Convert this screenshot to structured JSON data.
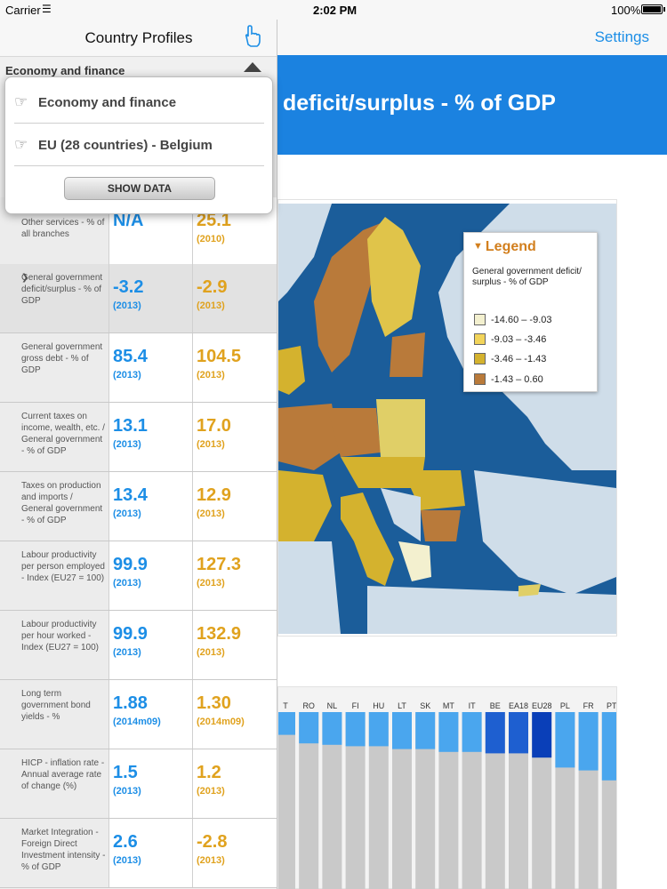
{
  "status_bar": {
    "carrier": "Carrier",
    "time": "2:02 PM",
    "battery": "100%"
  },
  "left_panel": {
    "title": "Country Profiles",
    "section_label": "Economy and finance",
    "dropdown": {
      "items": [
        {
          "label": "Economy and finance",
          "icon": "pointing-hand-icon"
        },
        {
          "label": "EU (28 countries) - Belgium",
          "icon": "pointing-hand-icon"
        }
      ],
      "button_label": "SHOW DATA"
    },
    "rows": [
      {
        "label": "Gross value added - Other services - % of all branches",
        "v1": "N/A",
        "v1_year": "",
        "v2": "25.1",
        "v2_year": "(2010)"
      },
      {
        "label": "General government deficit/surplus - % of GDP",
        "v1": "-3.2",
        "v1_year": "(2013)",
        "v2": "-2.9",
        "v2_year": "(2013)",
        "selected": true
      },
      {
        "label": "General government gross debt - % of GDP",
        "v1": "85.4",
        "v1_year": "(2013)",
        "v2": "104.5",
        "v2_year": "(2013)"
      },
      {
        "label": "Current taxes on income, wealth, etc. / General government - % of GDP",
        "v1": "13.1",
        "v1_year": "(2013)",
        "v2": "17.0",
        "v2_year": "(2013)"
      },
      {
        "label": "Taxes on production and imports / General government - % of GDP",
        "v1": "13.4",
        "v1_year": "(2013)",
        "v2": "12.9",
        "v2_year": "(2013)"
      },
      {
        "label": "Labour productivity per person employed - Index (EU27 = 100)",
        "v1": "99.9",
        "v1_year": "(2013)",
        "v2": "127.3",
        "v2_year": "(2013)"
      },
      {
        "label": "Labour productivity per hour worked - Index (EU27 = 100)",
        "v1": "99.9",
        "v1_year": "(2013)",
        "v2": "132.9",
        "v2_year": "(2013)"
      },
      {
        "label": "Long term government bond yields - %",
        "v1": "1.88",
        "v1_year": "(2014m09)",
        "v2": "1.30",
        "v2_year": "(2014m09)"
      },
      {
        "label": "HICP - inflation rate - Annual average rate of change (%)",
        "v1": "1.5",
        "v1_year": "(2013)",
        "v2": "1.2",
        "v2_year": "(2013)"
      },
      {
        "label": "Market Integration - Foreign Direct Investment intensity - % of GDP",
        "v1": "2.6",
        "v1_year": "(2013)",
        "v2": "-2.8",
        "v2_year": "(2013)"
      }
    ]
  },
  "main": {
    "settings_label": "Settings",
    "title": "deficit/surplus - % of GDP",
    "legend": {
      "title": "Legend",
      "subtitle": "General government deficit/ surplus - % of GDP",
      "classes": [
        {
          "label": "-14.60 – -9.03",
          "color": "#f3f0cf"
        },
        {
          "label": "-9.03 – -3.46",
          "color": "#f2d45a"
        },
        {
          "label": "-3.46 – -1.43",
          "color": "#d4b22e"
        },
        {
          "label": "-1.43 – 0.60",
          "color": "#b97a3a"
        }
      ]
    }
  },
  "chart_data": {
    "type": "bar",
    "categories": [
      "T",
      "RO",
      "NL",
      "FI",
      "HU",
      "LT",
      "SK",
      "MT",
      "IT",
      "BE",
      "EA18",
      "EU28",
      "PL",
      "FR",
      "PT"
    ],
    "values": [
      -1.6,
      -2.2,
      -2.3,
      -2.4,
      -2.4,
      -2.6,
      -2.6,
      -2.8,
      -2.8,
      -2.9,
      -2.9,
      -3.2,
      -3.9,
      -4.1,
      -4.8
    ],
    "highlighted": [
      "BE",
      "EA18",
      "EU28"
    ],
    "colors": {
      "bar": "#4aa6ee",
      "highlight": "#0a3fb8",
      "highlight2": "#1e5fd0",
      "background": "#c9c9c9"
    }
  }
}
